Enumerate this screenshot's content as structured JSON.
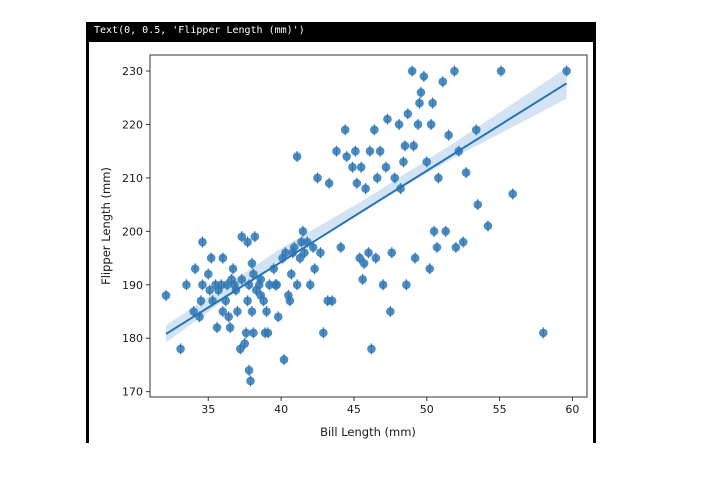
{
  "output_text": "Text(0, 0.5, 'Flipper Length (mm)')",
  "chart_data": {
    "type": "scatter",
    "xlabel": "Bill Length (mm)",
    "ylabel": "Flipper Length (mm)",
    "xlim": [
      31,
      61
    ],
    "ylim": [
      169,
      233
    ],
    "xticks": [
      35,
      40,
      45,
      50,
      55,
      60
    ],
    "yticks": [
      170,
      180,
      190,
      200,
      210,
      220,
      230
    ],
    "xtick_labels": [
      "35",
      "40",
      "45",
      "50",
      "55",
      "60"
    ],
    "ytick_labels": [
      "170",
      "180",
      "190",
      "200",
      "210",
      "220",
      "230"
    ],
    "point_color": "#2f78b5",
    "line_color": "#2273b8",
    "band_color": "#c6daf0",
    "regression": {
      "x": [
        32.1,
        59.6
      ],
      "y": [
        180.8,
        227.7
      ]
    },
    "confidence_band": {
      "x": [
        32.1,
        40,
        46,
        52,
        59.6
      ],
      "lower": [
        179.2,
        194.8,
        204.6,
        214.0,
        224.8
      ],
      "upper": [
        182.4,
        196.8,
        206.4,
        216.8,
        230.6
      ]
    },
    "points": [
      [
        32.1,
        188
      ],
      [
        33.1,
        178
      ],
      [
        33.5,
        190
      ],
      [
        34.0,
        185
      ],
      [
        34.1,
        193
      ],
      [
        34.4,
        184
      ],
      [
        34.5,
        187
      ],
      [
        34.6,
        198
      ],
      [
        34.6,
        190
      ],
      [
        35.0,
        192
      ],
      [
        35.1,
        189
      ],
      [
        35.2,
        195
      ],
      [
        35.3,
        187
      ],
      [
        35.5,
        190
      ],
      [
        35.6,
        182
      ],
      [
        35.7,
        189
      ],
      [
        35.9,
        190
      ],
      [
        36.0,
        185
      ],
      [
        36.0,
        195
      ],
      [
        36.2,
        187
      ],
      [
        36.3,
        190
      ],
      [
        36.4,
        184
      ],
      [
        36.5,
        182
      ],
      [
        36.6,
        191
      ],
      [
        36.7,
        193
      ],
      [
        36.8,
        190
      ],
      [
        36.9,
        189
      ],
      [
        37.0,
        185
      ],
      [
        37.2,
        178
      ],
      [
        37.3,
        191
      ],
      [
        37.3,
        199
      ],
      [
        37.5,
        179
      ],
      [
        37.6,
        181
      ],
      [
        37.7,
        187
      ],
      [
        37.7,
        198
      ],
      [
        37.8,
        174
      ],
      [
        37.8,
        190
      ],
      [
        37.9,
        172
      ],
      [
        38.0,
        185
      ],
      [
        38.0,
        194
      ],
      [
        38.1,
        181
      ],
      [
        38.1,
        192
      ],
      [
        38.2,
        199
      ],
      [
        38.3,
        189
      ],
      [
        38.5,
        190
      ],
      [
        38.6,
        188
      ],
      [
        38.6,
        191
      ],
      [
        38.8,
        187
      ],
      [
        38.9,
        181
      ],
      [
        39.0,
        185
      ],
      [
        39.1,
        181
      ],
      [
        39.2,
        190
      ],
      [
        39.5,
        193
      ],
      [
        39.6,
        190
      ],
      [
        39.7,
        190
      ],
      [
        39.8,
        184
      ],
      [
        40.1,
        195
      ],
      [
        40.2,
        176
      ],
      [
        40.3,
        196
      ],
      [
        40.5,
        188
      ],
      [
        40.6,
        187
      ],
      [
        40.7,
        192
      ],
      [
        40.8,
        196
      ],
      [
        40.9,
        197
      ],
      [
        41.1,
        190
      ],
      [
        41.1,
        214
      ],
      [
        41.3,
        195
      ],
      [
        41.4,
        198
      ],
      [
        41.5,
        200
      ],
      [
        41.6,
        196
      ],
      [
        41.8,
        198
      ],
      [
        42.0,
        190
      ],
      [
        42.2,
        197
      ],
      [
        42.3,
        193
      ],
      [
        42.5,
        210
      ],
      [
        42.7,
        196
      ],
      [
        42.9,
        181
      ],
      [
        43.2,
        187
      ],
      [
        43.3,
        209
      ],
      [
        43.5,
        187
      ],
      [
        43.8,
        215
      ],
      [
        44.1,
        197
      ],
      [
        44.4,
        219
      ],
      [
        44.5,
        214
      ],
      [
        44.9,
        212
      ],
      [
        45.1,
        215
      ],
      [
        45.2,
        209
      ],
      [
        45.4,
        195
      ],
      [
        45.5,
        212
      ],
      [
        45.6,
        191
      ],
      [
        45.7,
        194
      ],
      [
        45.8,
        208
      ],
      [
        46.0,
        196
      ],
      [
        46.1,
        215
      ],
      [
        46.2,
        178
      ],
      [
        46.4,
        219
      ],
      [
        46.5,
        195
      ],
      [
        46.6,
        210
      ],
      [
        46.8,
        215
      ],
      [
        47.0,
        190
      ],
      [
        47.2,
        212
      ],
      [
        47.3,
        221
      ],
      [
        47.5,
        185
      ],
      [
        47.6,
        196
      ],
      [
        47.8,
        210
      ],
      [
        48.1,
        220
      ],
      [
        48.2,
        208
      ],
      [
        48.4,
        213
      ],
      [
        48.5,
        216
      ],
      [
        48.6,
        190
      ],
      [
        48.7,
        222
      ],
      [
        49.0,
        230
      ],
      [
        49.1,
        216
      ],
      [
        49.2,
        195
      ],
      [
        49.4,
        220
      ],
      [
        49.5,
        224
      ],
      [
        49.6,
        226
      ],
      [
        49.8,
        229
      ],
      [
        50.0,
        213
      ],
      [
        50.2,
        193
      ],
      [
        50.3,
        220
      ],
      [
        50.4,
        224
      ],
      [
        50.5,
        200
      ],
      [
        50.7,
        197
      ],
      [
        50.8,
        210
      ],
      [
        51.1,
        228
      ],
      [
        51.3,
        200
      ],
      [
        51.5,
        218
      ],
      [
        51.9,
        230
      ],
      [
        52.0,
        197
      ],
      [
        52.2,
        215
      ],
      [
        52.5,
        198
      ],
      [
        52.7,
        211
      ],
      [
        53.4,
        219
      ],
      [
        53.5,
        205
      ],
      [
        54.2,
        201
      ],
      [
        55.1,
        230
      ],
      [
        55.9,
        207
      ],
      [
        58.0,
        181
      ],
      [
        59.6,
        230
      ]
    ]
  }
}
